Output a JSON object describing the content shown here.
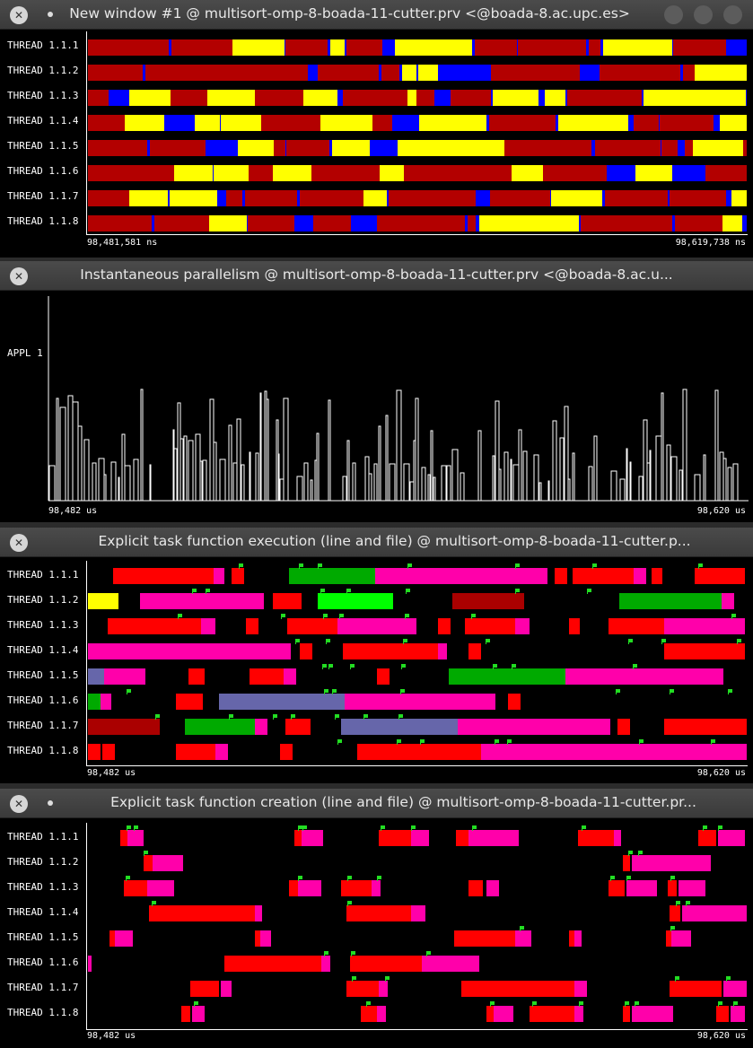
{
  "windows": {
    "w1": {
      "title": "New window #1 @ multisort-omp-8-boada-11-cutter.prv <@boada-8.ac.upc.es>",
      "threads": [
        "THREAD 1.1.1",
        "THREAD 1.1.2",
        "THREAD 1.1.3",
        "THREAD 1.1.4",
        "THREAD 1.1.5",
        "THREAD 1.1.6",
        "THREAD 1.1.7",
        "THREAD 1.1.8"
      ],
      "start_time": "98,481,581 ns",
      "end_time": "98,619,738 ns",
      "state_colors": {
        "running": "#b30000",
        "synchronization": "#0000ff",
        "scheduling": "#ffff00"
      }
    },
    "w2": {
      "title": "Instantaneous parallelism @ multisort-omp-8-boada-11-cutter.prv <@boada-8.ac.u...",
      "series_label": "APPL 1",
      "start_time": "98,482 us",
      "end_time": "98,620 us"
    },
    "w3": {
      "title": "Explicit task function execution (line and file) @ multisort-omp-8-boada-11-cutter.p...",
      "threads": [
        "THREAD 1.1.1",
        "THREAD 1.1.2",
        "THREAD 1.1.3",
        "THREAD 1.1.4",
        "THREAD 1.1.5",
        "THREAD 1.1.6",
        "THREAD 1.1.7",
        "THREAD 1.1.8"
      ],
      "start_time": "98,482 us",
      "end_time": "98,620 us"
    },
    "w4": {
      "title": "Explicit task function creation (line and file) @ multisort-omp-8-boada-11-cutter.pr...",
      "threads": [
        "THREAD 1.1.1",
        "THREAD 1.1.2",
        "THREAD 1.1.3",
        "THREAD 1.1.4",
        "THREAD 1.1.5",
        "THREAD 1.1.6",
        "THREAD 1.1.7",
        "THREAD 1.1.8"
      ],
      "start_time": "98,482 us",
      "end_time": "98,620 us"
    }
  },
  "icons": {
    "close": "close-icon",
    "sticky": "dot-icon",
    "minimize": "minimize-button",
    "maximize": "maximize-button"
  }
}
